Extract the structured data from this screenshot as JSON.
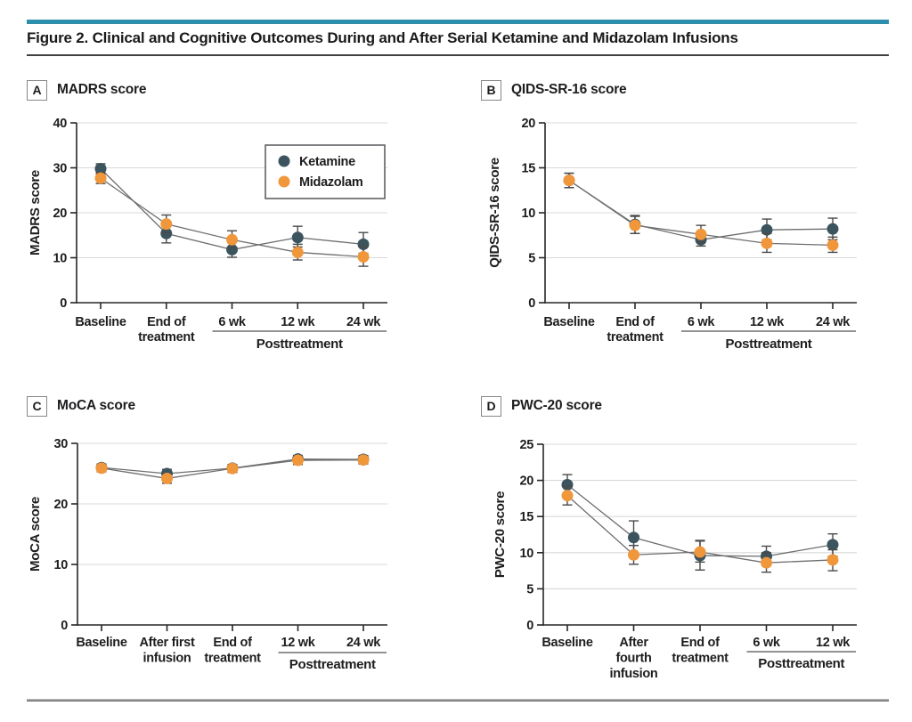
{
  "figure": {
    "title": "Figure 2. Clinical and Cognitive Outcomes During and After Serial Ketamine and Midazolam Infusions",
    "accent_bar_color": "#2e8fac"
  },
  "palette": {
    "ketamine": "#3b545e",
    "midazolam": "#f0973c",
    "series_line": "#6d6e70",
    "error_bar": "#4a4a4a",
    "axis": "#262626",
    "grid": "#d9d9d9",
    "bracket": "#6d6e70"
  },
  "legend": {
    "entries": [
      {
        "label": "Ketamine",
        "color": "#3b545e"
      },
      {
        "label": "Midazolam",
        "color": "#f0973c"
      }
    ]
  },
  "chart_data": [
    {
      "panel": "A",
      "type": "line",
      "title": "MADRS score",
      "ylabel": "MADRS score",
      "ylim": [
        0,
        40
      ],
      "yticks": [
        0,
        10,
        20,
        30,
        40
      ],
      "categories": [
        [
          "Baseline"
        ],
        [
          "End of",
          "treatment"
        ],
        [
          "6 wk"
        ],
        [
          "12 wk"
        ],
        [
          "24 wk"
        ]
      ],
      "posttreatment_bracket": {
        "label": "Posttreatment",
        "from_index": 2,
        "to_index": 4
      },
      "legend_position": "upper-right",
      "grid": true,
      "series": [
        {
          "name": "Ketamine",
          "values": [
            29.8,
            15.4,
            11.8,
            14.5,
            13.0
          ],
          "ci_low": [
            28.7,
            13.3,
            10.1,
            12.4,
            11.0
          ],
          "ci_high": [
            30.9,
            17.2,
            13.5,
            17.0,
            15.6
          ]
        },
        {
          "name": "Midazolam",
          "values": [
            27.7,
            17.5,
            14.0,
            11.2,
            10.2
          ],
          "ci_low": [
            26.5,
            15.6,
            12.1,
            9.5,
            8.1
          ],
          "ci_high": [
            28.9,
            19.5,
            16.0,
            13.0,
            12.4
          ]
        }
      ]
    },
    {
      "panel": "B",
      "type": "line",
      "title": "QIDS-SR-16 score",
      "ylabel": "QIDS-SR-16 score",
      "ylim": [
        0,
        20
      ],
      "yticks": [
        0,
        5,
        10,
        15,
        20
      ],
      "categories": [
        [
          "Baseline"
        ],
        [
          "End of",
          "treatment"
        ],
        [
          "6 wk"
        ],
        [
          "12 wk"
        ],
        [
          "24 wk"
        ]
      ],
      "posttreatment_bracket": {
        "label": "Posttreatment",
        "from_index": 2,
        "to_index": 4
      },
      "legend_position": null,
      "grid": true,
      "series": [
        {
          "name": "Ketamine",
          "values": [
            13.6,
            8.7,
            7.0,
            8.1,
            8.2
          ],
          "ci_low": [
            12.8,
            7.7,
            6.3,
            7.0,
            7.0
          ],
          "ci_high": [
            14.4,
            9.7,
            7.8,
            9.3,
            9.4
          ]
        },
        {
          "name": "Midazolam",
          "values": [
            13.6,
            8.6,
            7.6,
            6.6,
            6.4
          ],
          "ci_low": [
            12.8,
            7.7,
            6.7,
            5.6,
            5.6
          ],
          "ci_high": [
            14.4,
            9.6,
            8.6,
            7.7,
            7.3
          ]
        }
      ]
    },
    {
      "panel": "C",
      "type": "line",
      "title": "MoCA score",
      "ylabel": "MoCA score",
      "ylim": [
        0,
        30
      ],
      "yticks": [
        0,
        10,
        20,
        30
      ],
      "categories": [
        [
          "Baseline"
        ],
        [
          "After first",
          "infusion"
        ],
        [
          "End of",
          "treatment"
        ],
        [
          "12 wk"
        ],
        [
          "24 wk"
        ]
      ],
      "posttreatment_bracket": {
        "label": "Posttreatment",
        "from_index": 3,
        "to_index": 4
      },
      "legend_position": null,
      "grid": true,
      "series": [
        {
          "name": "Ketamine",
          "values": [
            26.0,
            25.0,
            25.9,
            27.4,
            27.35
          ],
          "ci_low": [
            25.4,
            24.3,
            25.3,
            26.8,
            26.7
          ],
          "ci_high": [
            26.6,
            25.7,
            26.5,
            28.0,
            28.0
          ]
        },
        {
          "name": "Midazolam",
          "values": [
            25.9,
            24.2,
            25.85,
            27.2,
            27.25
          ],
          "ci_low": [
            25.3,
            23.4,
            25.2,
            26.5,
            26.6
          ],
          "ci_high": [
            26.5,
            25.0,
            26.5,
            27.9,
            27.9
          ]
        }
      ]
    },
    {
      "panel": "D",
      "type": "line",
      "title": "PWC-20 score",
      "ylabel": "PWC-20 score",
      "ylim": [
        0,
        25
      ],
      "yticks": [
        0,
        5,
        10,
        15,
        20,
        25
      ],
      "categories": [
        [
          "Baseline"
        ],
        [
          "After",
          "fourth",
          "infusion"
        ],
        [
          "End of",
          "treatment"
        ],
        [
          "6 wk"
        ],
        [
          "12 wk"
        ]
      ],
      "posttreatment_bracket": {
        "label": "Posttreatment",
        "from_index": 3,
        "to_index": 4
      },
      "legend_position": null,
      "grid": true,
      "series": [
        {
          "name": "Ketamine",
          "values": [
            19.4,
            12.1,
            9.6,
            9.5,
            11.1
          ],
          "ci_low": [
            18.1,
            9.9,
            7.6,
            8.2,
            9.5
          ],
          "ci_high": [
            20.8,
            14.4,
            11.7,
            10.9,
            12.6
          ]
        },
        {
          "name": "Midazolam",
          "values": [
            17.9,
            9.7,
            10.1,
            8.6,
            9.0
          ],
          "ci_low": [
            16.6,
            8.4,
            8.7,
            7.3,
            7.5
          ],
          "ci_high": [
            19.2,
            11.0,
            11.6,
            10.0,
            10.4
          ]
        }
      ]
    }
  ]
}
